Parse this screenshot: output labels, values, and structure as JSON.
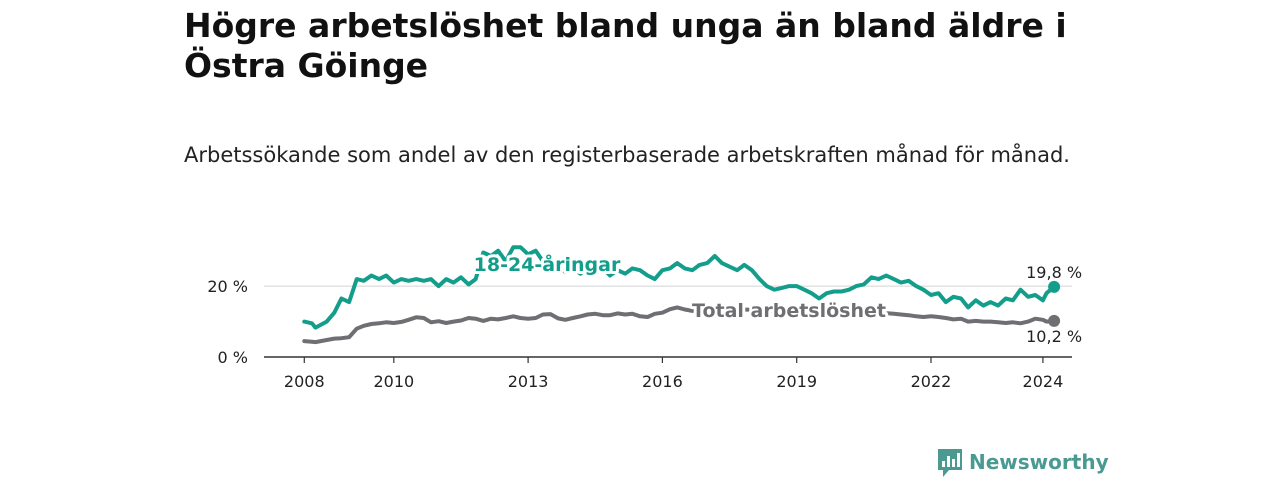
{
  "header": {
    "title": "Högre arbetslöshet bland unga än bland äldre i Östra Göinge",
    "subtitle": "Arbetssökande som andel av den registerbaserade arbetskraften månad för månad."
  },
  "brand": {
    "name": "Newsworthy",
    "icon": "bar-chart-icon",
    "color": "#4a9a92"
  },
  "chart_data": {
    "type": "line",
    "title": "Högre arbetslöshet bland unga än bland äldre i Östra Göinge",
    "subtitle": "Arbetssökande som andel av den registerbaserade arbetskraften månad för månad.",
    "xlabel": "",
    "ylabel": "",
    "x_range": [
      2008.0,
      2024.75
    ],
    "ylim": [
      0,
      30
    ],
    "x_ticks": [
      {
        "label": "2008",
        "value": 2008
      },
      {
        "label": "2010",
        "value": 2010
      },
      {
        "label": "2013",
        "value": 2013
      },
      {
        "label": "2016",
        "value": 2016
      },
      {
        "label": "2019",
        "value": 2019
      },
      {
        "label": "2022",
        "value": 2022
      },
      {
        "label": "2024",
        "value": 2024.5
      }
    ],
    "y_ticks": [
      {
        "label": "0 %",
        "value": 0
      },
      {
        "label": "20 %",
        "value": 20
      }
    ],
    "grid": true,
    "series": [
      {
        "name": "18-24-åringar",
        "label": "18-24-åringar",
        "color": "#139e8c",
        "end_label": "19,8 %",
        "points": [
          [
            2008.0,
            10.0
          ],
          [
            2008.17,
            9.5
          ],
          [
            2008.25,
            8.3
          ],
          [
            2008.5,
            10.0
          ],
          [
            2008.67,
            12.5
          ],
          [
            2008.83,
            16.5
          ],
          [
            2009.0,
            15.5
          ],
          [
            2009.17,
            22.0
          ],
          [
            2009.33,
            21.5
          ],
          [
            2009.5,
            23.0
          ],
          [
            2009.67,
            22.0
          ],
          [
            2009.83,
            23.0
          ],
          [
            2010.0,
            21.0
          ],
          [
            2010.17,
            22.0
          ],
          [
            2010.33,
            21.5
          ],
          [
            2010.5,
            22.0
          ],
          [
            2010.67,
            21.5
          ],
          [
            2010.83,
            22.0
          ],
          [
            2011.0,
            20.0
          ],
          [
            2011.17,
            22.0
          ],
          [
            2011.33,
            21.0
          ],
          [
            2011.5,
            22.5
          ],
          [
            2011.67,
            20.5
          ],
          [
            2011.83,
            22.0
          ],
          [
            2012.0,
            29.5
          ],
          [
            2012.17,
            28.5
          ],
          [
            2012.33,
            30.0
          ],
          [
            2012.5,
            27.0
          ],
          [
            2012.67,
            31.0
          ],
          [
            2012.83,
            31.0
          ],
          [
            2013.0,
            29.0
          ],
          [
            2013.17,
            30.0
          ],
          [
            2013.33,
            27.0
          ],
          [
            2013.5,
            24.0
          ],
          [
            2013.67,
            25.5
          ],
          [
            2013.83,
            24.0
          ],
          [
            2014.0,
            25.0
          ],
          [
            2014.17,
            23.5
          ],
          [
            2014.33,
            25.5
          ],
          [
            2014.5,
            24.0
          ],
          [
            2014.67,
            25.0
          ],
          [
            2014.83,
            23.0
          ],
          [
            2015.0,
            24.5
          ],
          [
            2015.17,
            23.5
          ],
          [
            2015.33,
            25.0
          ],
          [
            2015.5,
            24.5
          ],
          [
            2015.67,
            23.0
          ],
          [
            2015.83,
            22.0
          ],
          [
            2016.0,
            24.5
          ],
          [
            2016.17,
            25.0
          ],
          [
            2016.33,
            26.5
          ],
          [
            2016.5,
            25.0
          ],
          [
            2016.67,
            24.5
          ],
          [
            2016.83,
            26.0
          ],
          [
            2017.0,
            26.5
          ],
          [
            2017.17,
            28.5
          ],
          [
            2017.33,
            26.5
          ],
          [
            2017.5,
            25.5
          ],
          [
            2017.67,
            24.5
          ],
          [
            2017.83,
            26.0
          ],
          [
            2018.0,
            24.5
          ],
          [
            2018.17,
            22.0
          ],
          [
            2018.33,
            20.0
          ],
          [
            2018.5,
            19.0
          ],
          [
            2018.67,
            19.5
          ],
          [
            2018.83,
            20.0
          ],
          [
            2019.0,
            20.0
          ],
          [
            2019.17,
            19.0
          ],
          [
            2019.33,
            18.0
          ],
          [
            2019.5,
            16.5
          ],
          [
            2019.67,
            18.0
          ],
          [
            2019.83,
            18.5
          ],
          [
            2020.0,
            18.5
          ],
          [
            2020.17,
            19.0
          ],
          [
            2020.33,
            20.0
          ],
          [
            2020.5,
            20.5
          ],
          [
            2020.67,
            22.5
          ],
          [
            2020.83,
            22.0
          ],
          [
            2021.0,
            23.0
          ],
          [
            2021.17,
            22.0
          ],
          [
            2021.33,
            21.0
          ],
          [
            2021.5,
            21.5
          ],
          [
            2021.67,
            20.0
          ],
          [
            2021.83,
            19.0
          ],
          [
            2022.0,
            17.5
          ],
          [
            2022.17,
            18.0
          ],
          [
            2022.33,
            15.5
          ],
          [
            2022.5,
            17.0
          ],
          [
            2022.67,
            16.5
          ],
          [
            2022.83,
            14.0
          ],
          [
            2023.0,
            16.0
          ],
          [
            2023.17,
            14.5
          ],
          [
            2023.33,
            15.5
          ],
          [
            2023.5,
            14.5
          ],
          [
            2023.67,
            16.5
          ],
          [
            2023.83,
            16.0
          ],
          [
            2024.0,
            19.0
          ],
          [
            2024.17,
            17.0
          ],
          [
            2024.33,
            17.5
          ],
          [
            2024.5,
            16.0
          ],
          [
            2024.58,
            18.0
          ],
          [
            2024.75,
            19.8
          ]
        ]
      },
      {
        "name": "Total arbetslöshet",
        "label": "Total arbetslöshet",
        "color": "#6e6e73",
        "end_label": "10,2 %",
        "points": [
          [
            2008.0,
            4.5
          ],
          [
            2008.17,
            4.3
          ],
          [
            2008.25,
            4.2
          ],
          [
            2008.5,
            4.8
          ],
          [
            2008.67,
            5.2
          ],
          [
            2008.83,
            5.3
          ],
          [
            2009.0,
            5.6
          ],
          [
            2009.17,
            8.0
          ],
          [
            2009.33,
            8.8
          ],
          [
            2009.5,
            9.3
          ],
          [
            2009.67,
            9.5
          ],
          [
            2009.83,
            9.8
          ],
          [
            2010.0,
            9.6
          ],
          [
            2010.17,
            9.9
          ],
          [
            2010.33,
            10.5
          ],
          [
            2010.5,
            11.2
          ],
          [
            2010.67,
            11.0
          ],
          [
            2010.83,
            9.8
          ],
          [
            2011.0,
            10.1
          ],
          [
            2011.17,
            9.6
          ],
          [
            2011.33,
            10.0
          ],
          [
            2011.5,
            10.3
          ],
          [
            2011.67,
            11.0
          ],
          [
            2011.83,
            10.8
          ],
          [
            2012.0,
            10.2
          ],
          [
            2012.17,
            10.8
          ],
          [
            2012.33,
            10.6
          ],
          [
            2012.5,
            11.0
          ],
          [
            2012.67,
            11.5
          ],
          [
            2012.83,
            11.0
          ],
          [
            2013.0,
            10.8
          ],
          [
            2013.17,
            11.0
          ],
          [
            2013.33,
            12.0
          ],
          [
            2013.5,
            12.1
          ],
          [
            2013.67,
            10.9
          ],
          [
            2013.83,
            10.5
          ],
          [
            2014.0,
            11.0
          ],
          [
            2014.17,
            11.5
          ],
          [
            2014.33,
            12.0
          ],
          [
            2014.5,
            12.2
          ],
          [
            2014.67,
            11.8
          ],
          [
            2014.83,
            11.8
          ],
          [
            2015.0,
            12.3
          ],
          [
            2015.17,
            12.0
          ],
          [
            2015.33,
            12.2
          ],
          [
            2015.5,
            11.5
          ],
          [
            2015.67,
            11.3
          ],
          [
            2015.83,
            12.2
          ],
          [
            2016.0,
            12.5
          ],
          [
            2016.17,
            13.5
          ],
          [
            2016.33,
            14.0
          ],
          [
            2016.5,
            13.4
          ],
          [
            2016.67,
            13.0
          ],
          [
            2016.83,
            13.5
          ],
          [
            2017.0,
            13.5
          ],
          [
            2017.17,
            13.8
          ],
          [
            2017.33,
            13.6
          ],
          [
            2017.5,
            13.2
          ],
          [
            2017.67,
            13.0
          ],
          [
            2017.83,
            13.4
          ],
          [
            2018.0,
            13.3
          ],
          [
            2018.17,
            13.0
          ],
          [
            2018.33,
            12.9
          ],
          [
            2018.5,
            12.8
          ],
          [
            2018.67,
            13.0
          ],
          [
            2018.83,
            12.6
          ],
          [
            2019.0,
            12.5
          ],
          [
            2019.17,
            12.6
          ],
          [
            2019.33,
            12.7
          ],
          [
            2019.5,
            12.8
          ],
          [
            2019.67,
            12.9
          ],
          [
            2019.83,
            13.0
          ],
          [
            2020.0,
            13.2
          ],
          [
            2020.17,
            13.3
          ],
          [
            2020.33,
            13.1
          ],
          [
            2020.5,
            13.0
          ],
          [
            2020.67,
            12.8
          ],
          [
            2020.83,
            12.6
          ],
          [
            2021.0,
            12.4
          ],
          [
            2021.17,
            12.2
          ],
          [
            2021.33,
            12.0
          ],
          [
            2021.5,
            11.8
          ],
          [
            2021.67,
            11.5
          ],
          [
            2021.83,
            11.3
          ],
          [
            2022.0,
            11.5
          ],
          [
            2022.17,
            11.3
          ],
          [
            2022.33,
            11.0
          ],
          [
            2022.5,
            10.6
          ],
          [
            2022.67,
            10.8
          ],
          [
            2022.83,
            10.0
          ],
          [
            2023.0,
            10.2
          ],
          [
            2023.17,
            10.0
          ],
          [
            2023.33,
            10.0
          ],
          [
            2023.5,
            9.8
          ],
          [
            2023.67,
            9.6
          ],
          [
            2023.83,
            9.8
          ],
          [
            2024.0,
            9.5
          ],
          [
            2024.17,
            10.0
          ],
          [
            2024.33,
            10.8
          ],
          [
            2024.5,
            10.5
          ],
          [
            2024.58,
            10.0
          ],
          [
            2024.75,
            10.2
          ]
        ]
      }
    ]
  }
}
